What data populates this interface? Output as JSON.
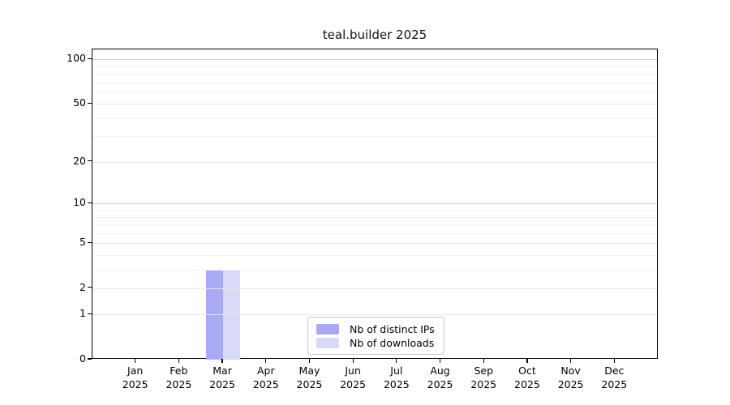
{
  "chart_data": {
    "type": "bar",
    "title": "teal.builder 2025",
    "xlabel": "",
    "ylabel": "",
    "year_label": "2025",
    "categories": [
      "Jan",
      "Feb",
      "Mar",
      "Apr",
      "May",
      "Jun",
      "Jul",
      "Aug",
      "Sep",
      "Oct",
      "Nov",
      "Dec"
    ],
    "series": [
      {
        "name": "Nb of distinct IPs",
        "color": "#a9a9f5",
        "values": [
          0,
          0,
          3,
          0,
          0,
          0,
          0,
          0,
          0,
          0,
          0,
          0
        ]
      },
      {
        "name": "Nb of downloads",
        "color": "#d9d9f8",
        "values": [
          0,
          0,
          3,
          0,
          0,
          0,
          0,
          0,
          0,
          0,
          0,
          0
        ]
      }
    ],
    "yscale": "log1p",
    "ylim": [
      0,
      117
    ],
    "yticks": [
      0,
      1,
      2,
      5,
      10,
      20,
      50,
      100
    ],
    "minor_gridlines": [
      3,
      4,
      6,
      7,
      8,
      9,
      30,
      40,
      60,
      70,
      80,
      90
    ],
    "major_gridlines": [
      1,
      2,
      5,
      20,
      50
    ],
    "strong_gridlines": [
      10,
      100
    ],
    "grid": true,
    "legend_position": "bottom-center",
    "colors": {
      "grid_minor": "#f2f2f2",
      "grid_major": "#e6e6e6",
      "grid_strong": "#cccccc",
      "frame": "#000000"
    }
  }
}
